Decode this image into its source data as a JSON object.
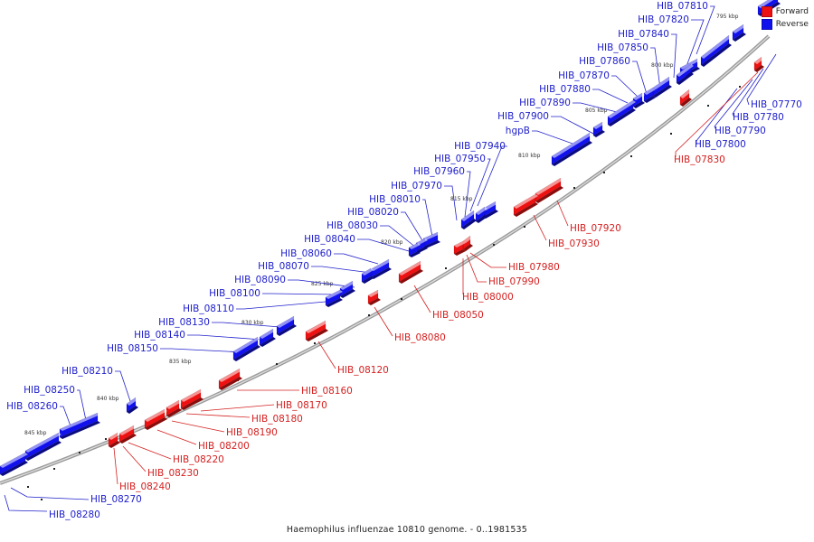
{
  "caption": "Haemophilus influenzae 10810 genome. - 0..1981535",
  "legend": {
    "forward_label": "Forward",
    "reverse_label": "Reverse",
    "forward_color": "#ee1111",
    "reverse_color": "#1111ee"
  },
  "colors": {
    "forward_line": "#d42020",
    "reverse_line": "#2020cc",
    "backbone": "#888888"
  },
  "ticks": [
    "795 kbp",
    "800 kbp",
    "805 kbp",
    "810 kbp",
    "815 kbp",
    "820 kbp",
    "825 kbp",
    "830 kbp",
    "835 kbp",
    "840 kbp",
    "845 kbp"
  ],
  "reverse_genes": [
    "HIB_07810",
    "HIB_07820",
    "HIB_07840",
    "HIB_07850",
    "HIB_07860",
    "HIB_07870",
    "HIB_07880",
    "HIB_07890",
    "HIB_07900",
    "hgpB",
    "HIB_07940",
    "HIB_07950",
    "HIB_07960",
    "HIB_07970",
    "HIB_08010",
    "HIB_08020",
    "HIB_08030",
    "HIB_08040",
    "HIB_08060",
    "HIB_08070",
    "HIB_08090",
    "HIB_08100",
    "HIB_08110",
    "HIB_08130",
    "HIB_08140",
    "HIB_08150",
    "HIB_08210",
    "HIB_08250",
    "HIB_08260",
    "HIB_08270",
    "HIB_08280",
    "HIB_07770",
    "HIB_07780",
    "HIB_07790",
    "HIB_07800"
  ],
  "forward_genes": [
    "HIB_07830",
    "HIB_07920",
    "HIB_07930",
    "HIB_07980",
    "HIB_07990",
    "HIB_08000",
    "HIB_08050",
    "HIB_08080",
    "HIB_08120",
    "HIB_08160",
    "HIB_08170",
    "HIB_08180",
    "HIB_08190",
    "HIB_08200",
    "HIB_08220",
    "HIB_08230",
    "HIB_08240"
  ]
}
